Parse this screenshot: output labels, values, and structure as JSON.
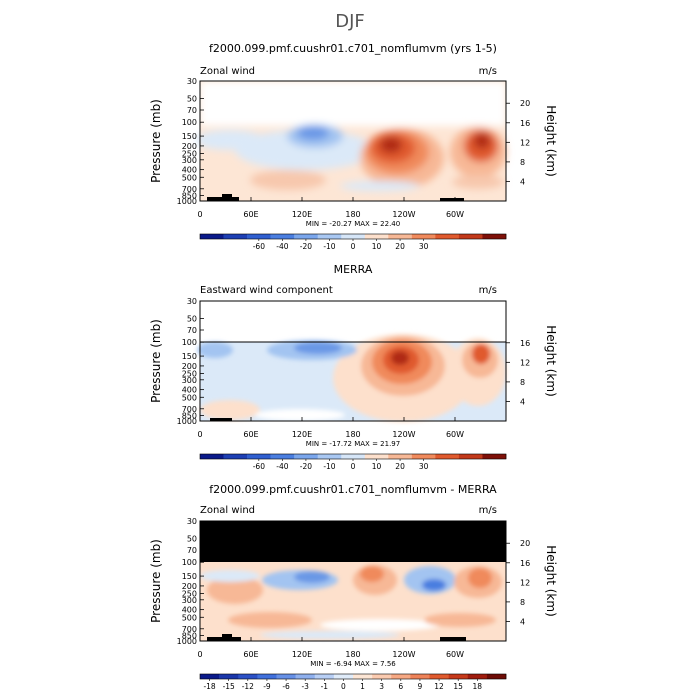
{
  "figure": {
    "title": "DJF"
  },
  "panels": [
    {
      "title": "f2000.099.pmf.cuushr01.c701_nomflumvm (yrs 1-5)",
      "variable": "Zonal wind",
      "units": "m/s",
      "ylabel": "Pressure (mb)",
      "ylabel_right": "Height (km)",
      "stats": "MIN =  -20.27   MAX =   22.40",
      "height_ticks": [
        "20",
        "16",
        "12",
        "8",
        "4"
      ],
      "colorbar_labels": [
        "-60",
        "-40",
        "-20",
        "-10",
        "0",
        "10",
        "20",
        "30"
      ]
    },
    {
      "title": "MERRA",
      "variable": "Eastward wind component",
      "units": "m/s",
      "ylabel": "Pressure (mb)",
      "ylabel_right": "Height (km)",
      "stats": "MIN =  -17.72   MAX =   21.97",
      "height_ticks": [
        "16",
        "12",
        "8",
        "4"
      ],
      "colorbar_labels": [
        "-60",
        "-40",
        "-20",
        "-10",
        "0",
        "10",
        "20",
        "30"
      ]
    },
    {
      "title": "f2000.099.pmf.cuushr01.c701_nomflumvm - MERRA",
      "variable": "Zonal wind",
      "units": "m/s",
      "ylabel": "Pressure (mb)",
      "ylabel_right": "Height (km)",
      "stats": "MIN =   -6.94   MAX =    7.56",
      "height_ticks": [
        "20",
        "16",
        "12",
        "8",
        "4"
      ],
      "colorbar_labels": [
        "-18",
        "-15",
        "-12",
        "-9",
        "-6",
        "-3",
        "-1",
        "0",
        "1",
        "3",
        "6",
        "9",
        "12",
        "15",
        "18"
      ]
    }
  ],
  "chart_data": [
    {
      "type": "heatmap",
      "title": "f2000.099.pmf.cuushr01.c701_nomflumvm (yrs 1-5)",
      "xlabel": "",
      "ylabel": "Pressure (mb)",
      "x_ticks": [
        "0",
        "60E",
        "120E",
        "180",
        "120W",
        "60W"
      ],
      "y_ticks": [
        "30",
        "50",
        "70",
        "100",
        "150",
        "200",
        "250",
        "300",
        "400",
        "500",
        "700",
        "850",
        "1000"
      ],
      "y_scale": "log",
      "y_reversed": true,
      "ylim": [
        1000,
        30
      ],
      "colorbar_levels": [
        -60,
        -40,
        -20,
        -10,
        0,
        10,
        20,
        30
      ],
      "colors": {
        "strong_negative": "#0a1a8a",
        "negative": "#4a7ee0",
        "weak_negative": "#d8e8f8",
        "weak_positive": "#fde0cc",
        "positive": "#f0703c",
        "strong_positive": "#a8180c",
        "missing": "#000000"
      },
      "min": -20.27,
      "max": 22.4,
      "missing_above_hPa": null
    },
    {
      "type": "heatmap",
      "title": "MERRA",
      "xlabel": "",
      "ylabel": "Pressure (mb)",
      "x_ticks": [
        "0",
        "60E",
        "120E",
        "180",
        "120W",
        "60W"
      ],
      "y_ticks": [
        "30",
        "50",
        "70",
        "100",
        "150",
        "200",
        "250",
        "300",
        "400",
        "500",
        "700",
        "850",
        "1000"
      ],
      "y_scale": "log",
      "y_reversed": true,
      "ylim": [
        1000,
        30
      ],
      "colorbar_levels": [
        -60,
        -40,
        -20,
        -10,
        0,
        10,
        20,
        30
      ],
      "min": -17.72,
      "max": 21.97,
      "missing_above_hPa": 100
    },
    {
      "type": "heatmap",
      "title": "f2000.099.pmf.cuushr01.c701_nomflumvm - MERRA",
      "xlabel": "",
      "ylabel": "Pressure (mb)",
      "x_ticks": [
        "0",
        "60E",
        "120E",
        "180",
        "120W",
        "60W"
      ],
      "y_ticks": [
        "30",
        "50",
        "70",
        "100",
        "150",
        "200",
        "250",
        "300",
        "400",
        "500",
        "700",
        "850",
        "1000"
      ],
      "y_scale": "log",
      "y_reversed": true,
      "ylim": [
        1000,
        30
      ],
      "colorbar_levels": [
        -18,
        -15,
        -12,
        -9,
        -6,
        -3,
        -1,
        0,
        1,
        3,
        6,
        9,
        12,
        15,
        18
      ],
      "min": -6.94,
      "max": 7.56,
      "missing_above_hPa": 100,
      "missing_fill": "#000000"
    }
  ]
}
